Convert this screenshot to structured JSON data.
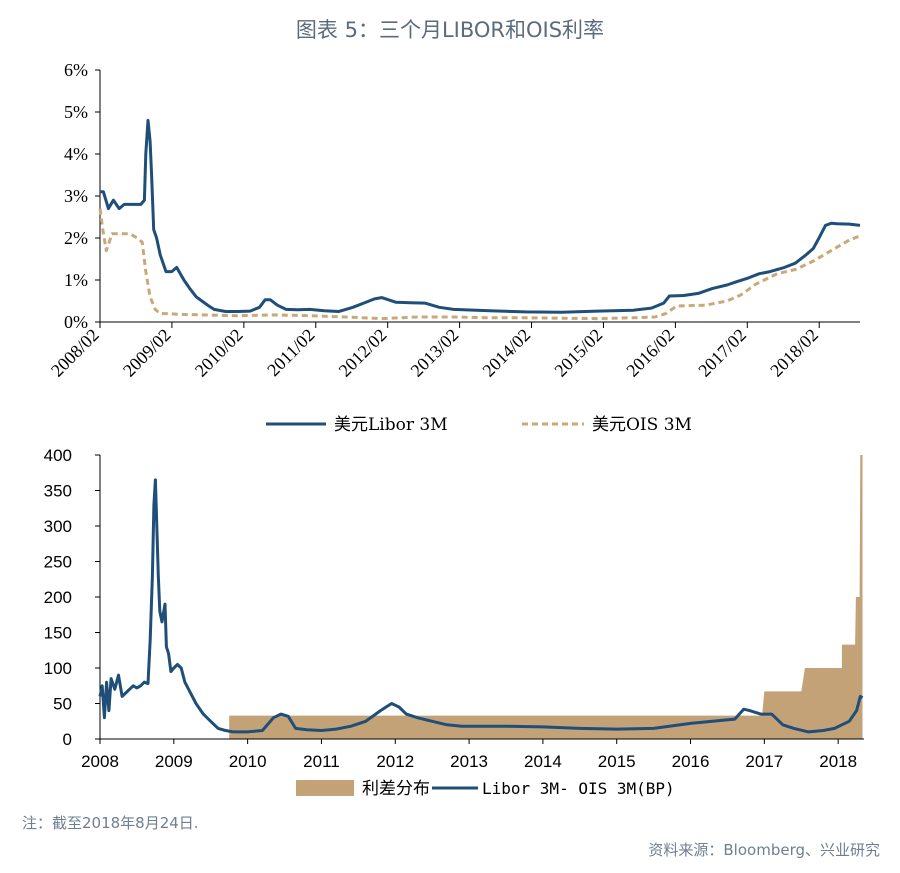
{
  "title": "图表 5：三个月LIBOR和OIS利率",
  "note": "注：截至2018年8月24日.",
  "source": "资料来源：Bloomberg、兴业研究",
  "colors": {
    "libor": "#1f4e79",
    "ois": "#c8a97a",
    "spread_fill": "#c4a278"
  },
  "chart_data": [
    {
      "type": "line",
      "yunit": "%",
      "ylim": [
        0,
        6
      ],
      "yticks": [
        "0%",
        "1%",
        "2%",
        "3%",
        "4%",
        "5%",
        "6%"
      ],
      "xlim": [
        2008.083,
        2018.65
      ],
      "xticks": [
        "2008/02",
        "2009/02",
        "2010/02",
        "2011/02",
        "2012/02",
        "2013/02",
        "2014/02",
        "2015/02",
        "2016/02",
        "2017/02",
        "2018/02"
      ],
      "legend_position": "bottom",
      "series": [
        {
          "name": "美元Libor 3M",
          "style": "solid",
          "x": [
            2008.083,
            2008.13,
            2008.2,
            2008.27,
            2008.35,
            2008.42,
            2008.5,
            2008.58,
            2008.65,
            2008.7,
            2008.72,
            2008.75,
            2008.78,
            2008.8,
            2008.83,
            2008.87,
            2008.92,
            2009.0,
            2009.08,
            2009.15,
            2009.25,
            2009.33,
            2009.42,
            2009.5,
            2009.58,
            2009.67,
            2009.83,
            2010.0,
            2010.17,
            2010.3,
            2010.38,
            2010.45,
            2010.55,
            2010.67,
            2010.83,
            2011.0,
            2011.2,
            2011.4,
            2011.5,
            2011.6,
            2011.75,
            2011.9,
            2012.0,
            2012.2,
            2012.4,
            2012.6,
            2012.8,
            2013.0,
            2013.5,
            2014.0,
            2014.5,
            2015.0,
            2015.5,
            2015.75,
            2015.92,
            2016.0,
            2016.2,
            2016.4,
            2016.6,
            2016.8,
            2016.92,
            2017.1,
            2017.25,
            2017.4,
            2017.6,
            2017.75,
            2017.9,
            2018.0,
            2018.08,
            2018.17,
            2018.25,
            2018.33,
            2018.5,
            2018.65
          ],
          "y": [
            3.1,
            3.1,
            2.7,
            2.9,
            2.7,
            2.8,
            2.8,
            2.8,
            2.8,
            2.9,
            4.0,
            4.8,
            4.3,
            3.5,
            2.2,
            2.0,
            1.6,
            1.2,
            1.2,
            1.3,
            1.0,
            0.8,
            0.6,
            0.5,
            0.4,
            0.3,
            0.25,
            0.25,
            0.26,
            0.35,
            0.53,
            0.53,
            0.4,
            0.3,
            0.29,
            0.3,
            0.27,
            0.25,
            0.3,
            0.35,
            0.45,
            0.55,
            0.58,
            0.47,
            0.46,
            0.45,
            0.35,
            0.3,
            0.27,
            0.24,
            0.23,
            0.26,
            0.28,
            0.33,
            0.45,
            0.62,
            0.63,
            0.68,
            0.8,
            0.88,
            0.95,
            1.05,
            1.15,
            1.2,
            1.3,
            1.4,
            1.6,
            1.75,
            2.0,
            2.3,
            2.35,
            2.34,
            2.33,
            2.3
          ]
        },
        {
          "name": "美元OIS 3M",
          "style": "dashed",
          "x": [
            2008.083,
            2008.13,
            2008.17,
            2008.25,
            2008.35,
            2008.5,
            2008.6,
            2008.67,
            2008.72,
            2008.78,
            2008.85,
            2008.92,
            2009.0,
            2009.2,
            2009.5,
            2010.0,
            2010.5,
            2011.0,
            2011.5,
            2012.0,
            2012.5,
            2013.0,
            2013.5,
            2014.0,
            2014.5,
            2015.0,
            2015.5,
            2015.8,
            2015.95,
            2016.1,
            2016.5,
            2016.8,
            2017.0,
            2017.2,
            2017.5,
            2017.75,
            2018.0,
            2018.25,
            2018.5,
            2018.65
          ],
          "y": [
            2.7,
            2.1,
            1.7,
            2.1,
            2.1,
            2.1,
            2.0,
            1.9,
            1.2,
            0.6,
            0.3,
            0.2,
            0.2,
            0.18,
            0.17,
            0.15,
            0.17,
            0.15,
            0.12,
            0.08,
            0.12,
            0.12,
            0.1,
            0.1,
            0.09,
            0.08,
            0.1,
            0.12,
            0.2,
            0.38,
            0.4,
            0.5,
            0.65,
            0.9,
            1.15,
            1.25,
            1.45,
            1.7,
            1.95,
            2.05
          ]
        }
      ]
    },
    {
      "type": "area",
      "ylim": [
        0,
        400
      ],
      "yticks": [
        "0",
        "50",
        "100",
        "150",
        "200",
        "250",
        "300",
        "350",
        "400"
      ],
      "xlim": [
        2008,
        2018.35
      ],
      "xticks": [
        "2008",
        "2009",
        "2010",
        "2011",
        "2012",
        "2013",
        "2014",
        "2015",
        "2016",
        "2017",
        "2018"
      ],
      "legend_position": "bottom",
      "series": [
        {
          "name": "利差分布",
          "style": "step-area",
          "x": [
            2009.75,
            2016.97,
            2017.0,
            2017.5,
            2017.55,
            2018.05,
            2018.05,
            2018.23,
            2018.24,
            2018.29,
            2018.3,
            2018.33
          ],
          "y": [
            33,
            33,
            67,
            67,
            100,
            100,
            133,
            133,
            200,
            200,
            400,
            400
          ]
        },
        {
          "name": "Libor 3M- OIS 3M(BP)",
          "style": "solid",
          "x": [
            2008.0,
            2008.03,
            2008.06,
            2008.09,
            2008.12,
            2008.15,
            2008.2,
            2008.25,
            2008.3,
            2008.35,
            2008.4,
            2008.45,
            2008.5,
            2008.55,
            2008.6,
            2008.65,
            2008.68,
            2008.71,
            2008.73,
            2008.75,
            2008.77,
            2008.79,
            2008.81,
            2008.84,
            2008.88,
            2008.9,
            2008.93,
            2008.96,
            2009.0,
            2009.05,
            2009.1,
            2009.15,
            2009.2,
            2009.3,
            2009.4,
            2009.5,
            2009.6,
            2009.7,
            2009.8,
            2010.0,
            2010.2,
            2010.35,
            2010.45,
            2010.55,
            2010.65,
            2010.8,
            2011.0,
            2011.2,
            2011.4,
            2011.6,
            2011.8,
            2011.95,
            2012.05,
            2012.15,
            2012.3,
            2012.5,
            2012.7,
            2012.9,
            2013.1,
            2013.5,
            2014.0,
            2014.5,
            2015.0,
            2015.5,
            2016.0,
            2016.4,
            2016.6,
            2016.72,
            2016.8,
            2016.95,
            2017.1,
            2017.25,
            2017.4,
            2017.6,
            2017.8,
            2017.95,
            2018.05,
            2018.15,
            2018.25,
            2018.3,
            2018.33
          ],
          "y": [
            60,
            75,
            30,
            80,
            40,
            85,
            70,
            90,
            60,
            65,
            70,
            75,
            72,
            75,
            80,
            78,
            140,
            230,
            330,
            365,
            300,
            230,
            180,
            165,
            190,
            130,
            120,
            95,
            100,
            105,
            100,
            80,
            70,
            50,
            35,
            25,
            15,
            12,
            10,
            10,
            12,
            30,
            35,
            32,
            15,
            13,
            12,
            14,
            18,
            25,
            40,
            50,
            45,
            35,
            30,
            25,
            20,
            18,
            18,
            18,
            17,
            15,
            14,
            15,
            22,
            26,
            28,
            42,
            40,
            35,
            35,
            20,
            15,
            10,
            12,
            15,
            20,
            25,
            40,
            60,
            58
          ]
        }
      ]
    }
  ]
}
